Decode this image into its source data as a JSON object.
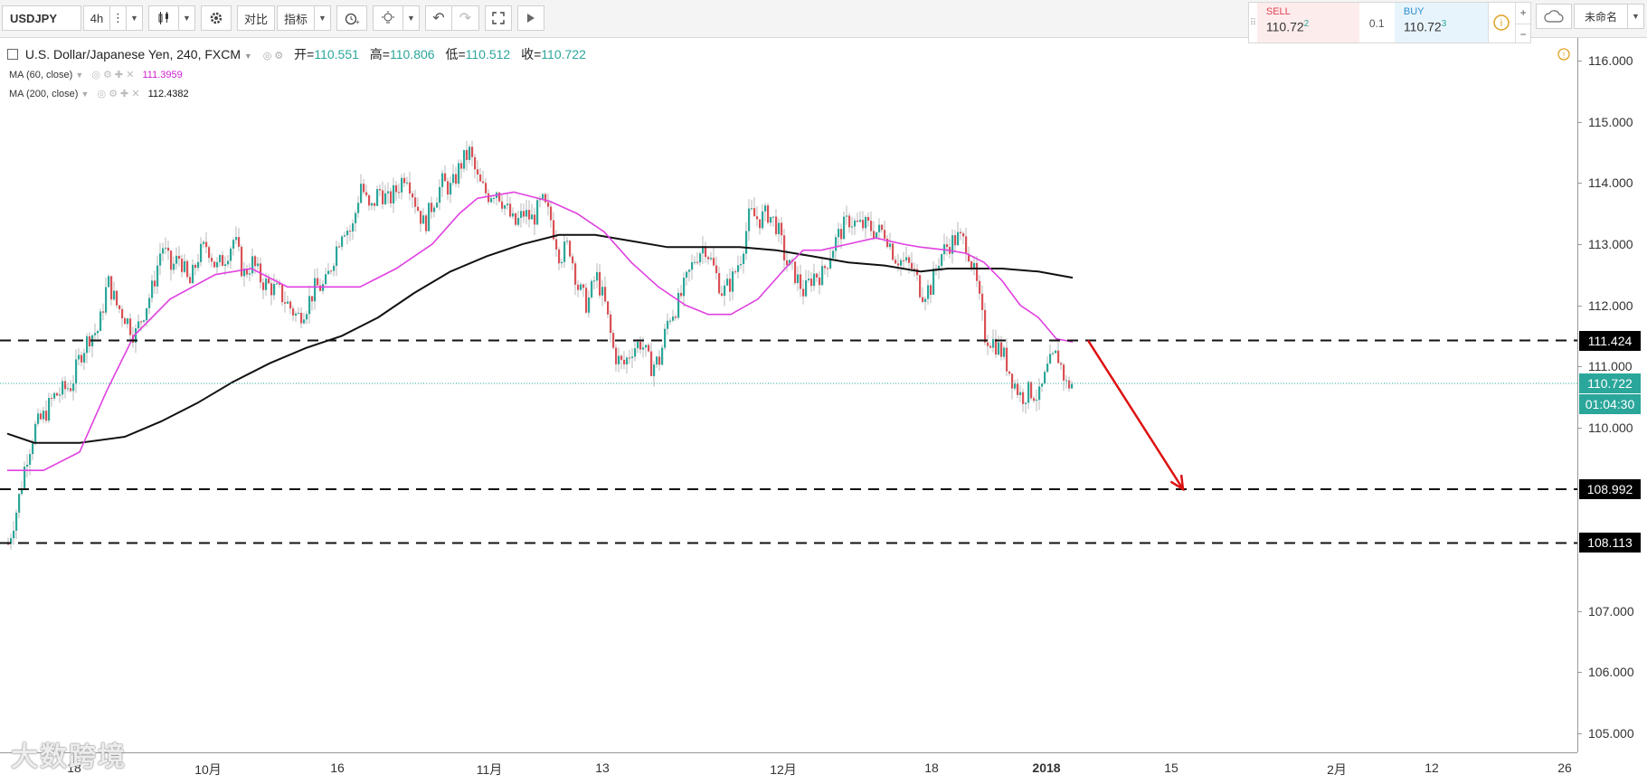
{
  "toolbar": {
    "symbol": "USDJPY",
    "interval": "4h",
    "compare_label": "对比",
    "indicators_label": "指标",
    "layout_name": "未命名"
  },
  "trade_panel": {
    "sell_label": "SELL",
    "sell_price": "110.72",
    "sell_sup": "2",
    "spread": "0.1",
    "buy_label": "BUY",
    "buy_price": "110.72",
    "buy_sup": "3"
  },
  "legend": {
    "title": "U.S. Dollar/Japanese Yen, 240, FXCM",
    "open_label": "开=",
    "open": "110.551",
    "high_label": "高=",
    "high": "110.806",
    "low_label": "低=",
    "low": "110.512",
    "close_label": "收=",
    "close": "110.722",
    "ma60_label": "MA (60, close)",
    "ma60_value": "111.3959",
    "ma200_label": "MA (200, close)",
    "ma200_value": "112.4382"
  },
  "watermark": "大数跨境",
  "colors": {
    "up": "#2ba69a",
    "down": "#d95055",
    "ma60": "#e040e0",
    "ma200": "#111111",
    "arrow": "#dd1111",
    "price_tag": "#2ba69a"
  },
  "chart_data": {
    "type": "candlestick",
    "y_range": [
      104.7,
      116.3
    ],
    "y_ticks": [
      "116.000",
      "115.000",
      "114.000",
      "113.000",
      "112.000",
      "111.000",
      "110.000",
      "107.000",
      "106.000",
      "105.000"
    ],
    "x_ticks": [
      "18",
      "10月",
      "16",
      "11月",
      "13",
      "12月",
      "18",
      "2018",
      "15",
      "2月",
      "12",
      "26"
    ],
    "levels": [
      {
        "price": 111.424,
        "label": "111.424"
      },
      {
        "price": 108.992,
        "label": "108.992"
      },
      {
        "price": 108.113,
        "label": "108.113"
      }
    ],
    "last_price": {
      "price": 110.722,
      "label": "110.722",
      "countdown": "01:04:30"
    },
    "ma60_path": [
      [
        0,
        109.3
      ],
      [
        40,
        109.3
      ],
      [
        80,
        109.6
      ],
      [
        110,
        110.6
      ],
      [
        140,
        111.5
      ],
      [
        180,
        112.1
      ],
      [
        230,
        112.5
      ],
      [
        270,
        112.6
      ],
      [
        310,
        112.3
      ],
      [
        350,
        112.3
      ],
      [
        390,
        112.3
      ],
      [
        430,
        112.6
      ],
      [
        470,
        113.0
      ],
      [
        500,
        113.5
      ],
      [
        520,
        113.75
      ],
      [
        560,
        113.85
      ],
      [
        600,
        113.7
      ],
      [
        630,
        113.5
      ],
      [
        660,
        113.2
      ],
      [
        690,
        112.7
      ],
      [
        720,
        112.3
      ],
      [
        750,
        112.0
      ],
      [
        775,
        111.85
      ],
      [
        800,
        111.85
      ],
      [
        830,
        112.1
      ],
      [
        860,
        112.6
      ],
      [
        880,
        112.9
      ],
      [
        900,
        112.9
      ],
      [
        930,
        113.0
      ],
      [
        960,
        113.1
      ],
      [
        990,
        113.0
      ],
      [
        1010,
        112.95
      ],
      [
        1040,
        112.9
      ],
      [
        1060,
        112.85
      ],
      [
        1080,
        112.7
      ],
      [
        1100,
        112.4
      ],
      [
        1120,
        112.0
      ],
      [
        1140,
        111.8
      ],
      [
        1160,
        111.45
      ],
      [
        1178,
        111.4
      ]
    ],
    "ma200_path": [
      [
        0,
        109.9
      ],
      [
        30,
        109.75
      ],
      [
        80,
        109.75
      ],
      [
        130,
        109.85
      ],
      [
        170,
        110.1
      ],
      [
        210,
        110.4
      ],
      [
        250,
        110.75
      ],
      [
        290,
        111.05
      ],
      [
        330,
        111.3
      ],
      [
        370,
        111.5
      ],
      [
        410,
        111.8
      ],
      [
        450,
        112.2
      ],
      [
        490,
        112.55
      ],
      [
        530,
        112.8
      ],
      [
        570,
        113.0
      ],
      [
        610,
        113.15
      ],
      [
        650,
        113.15
      ],
      [
        690,
        113.05
      ],
      [
        730,
        112.95
      ],
      [
        770,
        112.95
      ],
      [
        810,
        112.95
      ],
      [
        850,
        112.9
      ],
      [
        890,
        112.8
      ],
      [
        930,
        112.7
      ],
      [
        970,
        112.65
      ],
      [
        1010,
        112.55
      ],
      [
        1040,
        112.6
      ],
      [
        1070,
        112.6
      ],
      [
        1100,
        112.6
      ],
      [
        1140,
        112.55
      ],
      [
        1178,
        112.45
      ]
    ],
    "close_path": [
      [
        0,
        108.1
      ],
      [
        10,
        108.7
      ],
      [
        20,
        109.5
      ],
      [
        30,
        110.0
      ],
      [
        40,
        110.2
      ],
      [
        50,
        110.5
      ],
      [
        60,
        110.6
      ],
      [
        70,
        110.7
      ],
      [
        80,
        111.2
      ],
      [
        90,
        111.5
      ],
      [
        100,
        111.6
      ],
      [
        110,
        112.4
      ],
      [
        120,
        112.0
      ],
      [
        130,
        111.8
      ],
      [
        140,
        111.5
      ],
      [
        150,
        111.9
      ],
      [
        160,
        112.3
      ],
      [
        170,
        113.0
      ],
      [
        180,
        112.6
      ],
      [
        190,
        112.8
      ],
      [
        200,
        112.3
      ],
      [
        210,
        112.8
      ],
      [
        220,
        113.0
      ],
      [
        230,
        112.6
      ],
      [
        240,
        112.8
      ],
      [
        250,
        113.1
      ],
      [
        260,
        112.5
      ],
      [
        270,
        112.7
      ],
      [
        280,
        112.4
      ],
      [
        290,
        112.3
      ],
      [
        300,
        112.2
      ],
      [
        310,
        112.0
      ],
      [
        320,
        111.8
      ],
      [
        330,
        112.0
      ],
      [
        340,
        112.3
      ],
      [
        350,
        112.3
      ],
      [
        360,
        112.8
      ],
      [
        370,
        113.3
      ],
      [
        380,
        113.2
      ],
      [
        390,
        114.0
      ],
      [
        400,
        113.5
      ],
      [
        410,
        113.9
      ],
      [
        420,
        113.7
      ],
      [
        430,
        113.9
      ],
      [
        440,
        114.2
      ],
      [
        450,
        113.7
      ],
      [
        460,
        113.3
      ],
      [
        470,
        113.7
      ],
      [
        480,
        114.0
      ],
      [
        490,
        113.9
      ],
      [
        500,
        114.3
      ],
      [
        510,
        114.5
      ],
      [
        520,
        114.0
      ],
      [
        530,
        113.8
      ],
      [
        540,
        113.9
      ],
      [
        550,
        113.6
      ],
      [
        560,
        113.3
      ],
      [
        570,
        113.5
      ],
      [
        580,
        113.4
      ],
      [
        590,
        113.7
      ],
      [
        600,
        113.4
      ],
      [
        610,
        112.8
      ],
      [
        620,
        113.0
      ],
      [
        630,
        112.3
      ],
      [
        640,
        112.0
      ],
      [
        650,
        112.5
      ],
      [
        660,
        112.0
      ],
      [
        670,
        111.2
      ],
      [
        680,
        111.0
      ],
      [
        690,
        111.3
      ],
      [
        700,
        111.4
      ],
      [
        710,
        111.0
      ],
      [
        720,
        111.1
      ],
      [
        730,
        111.8
      ],
      [
        740,
        112.0
      ],
      [
        750,
        112.4
      ],
      [
        760,
        112.8
      ],
      [
        770,
        113.0
      ],
      [
        780,
        112.6
      ],
      [
        790,
        112.2
      ],
      [
        800,
        112.4
      ],
      [
        810,
        112.8
      ],
      [
        820,
        113.5
      ],
      [
        830,
        113.4
      ],
      [
        840,
        113.5
      ],
      [
        850,
        113.3
      ],
      [
        860,
        112.7
      ],
      [
        870,
        112.5
      ],
      [
        880,
        112.2
      ],
      [
        890,
        112.5
      ],
      [
        900,
        112.5
      ],
      [
        910,
        112.9
      ],
      [
        920,
        113.2
      ],
      [
        930,
        113.4
      ],
      [
        940,
        113.3
      ],
      [
        950,
        113.3
      ],
      [
        960,
        113.2
      ],
      [
        970,
        113.2
      ],
      [
        980,
        112.8
      ],
      [
        990,
        112.7
      ],
      [
        1000,
        112.6
      ],
      [
        1010,
        112.2
      ],
      [
        1020,
        112.3
      ],
      [
        1030,
        112.8
      ],
      [
        1040,
        113.0
      ],
      [
        1050,
        113.1
      ],
      [
        1060,
        113.0
      ],
      [
        1070,
        112.4
      ],
      [
        1080,
        111.5
      ],
      [
        1090,
        111.4
      ],
      [
        1100,
        111.2
      ],
      [
        1110,
        110.8
      ],
      [
        1120,
        110.5
      ],
      [
        1130,
        110.6
      ],
      [
        1140,
        110.5
      ],
      [
        1150,
        111.0
      ],
      [
        1160,
        111.2
      ],
      [
        1170,
        110.7
      ],
      [
        1178,
        110.72
      ]
    ],
    "projection": {
      "from_x": 1195,
      "from_price": 111.424,
      "to_x": 1300,
      "to_price": 108.992
    }
  }
}
